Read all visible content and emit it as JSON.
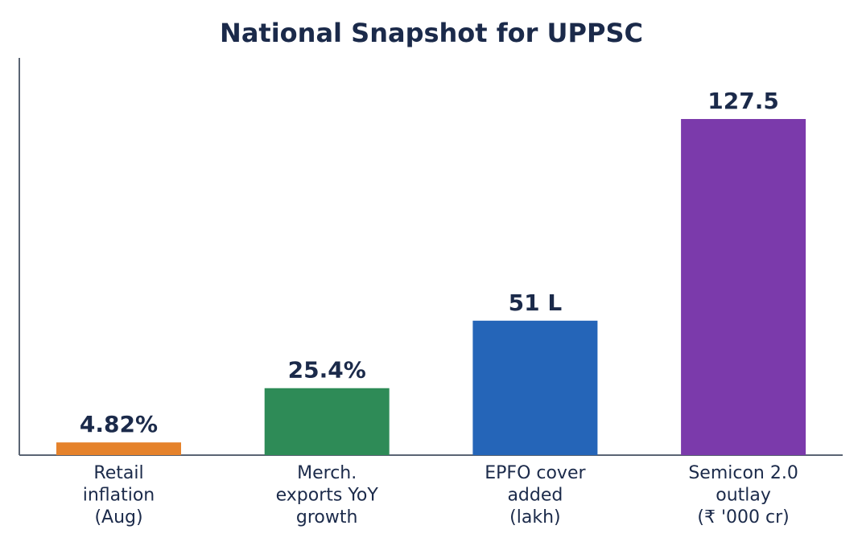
{
  "chart_data": {
    "type": "bar",
    "title": "National Snapshot for UPPSC",
    "xlabel": "",
    "ylabel": "",
    "grid": false,
    "ylim": [
      0,
      140
    ],
    "categories": [
      [
        "Retail",
        "inflation",
        "(Aug)"
      ],
      [
        "Merch.",
        "exports YoY",
        "growth"
      ],
      [
        "EPFO cover",
        "added",
        "(lakh)"
      ],
      [
        "Semicon 2.0",
        "outlay",
        "(₹ '000 cr)"
      ]
    ],
    "values": [
      4.82,
      25.4,
      51,
      127.5
    ],
    "value_labels": [
      "4.82%",
      "25.4%",
      "51 L",
      "127.5"
    ],
    "colors": [
      "#e5822b",
      "#2e8b57",
      "#2565b8",
      "#7b3aab"
    ]
  }
}
